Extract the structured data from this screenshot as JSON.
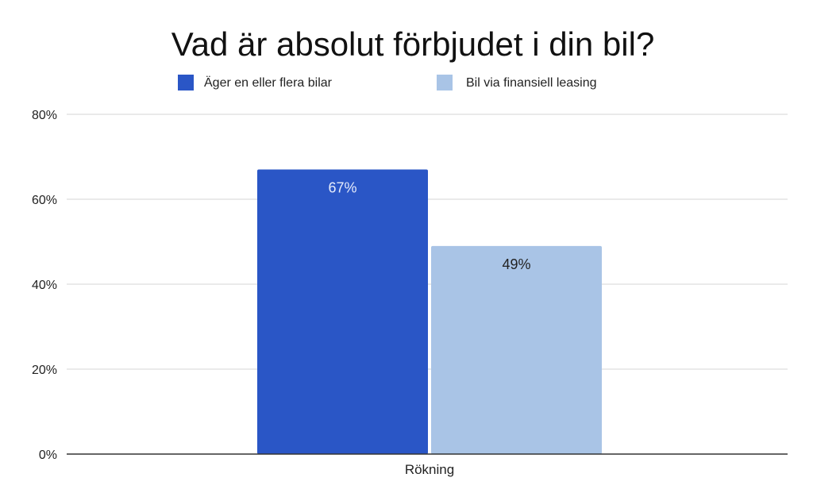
{
  "chart_data": {
    "type": "bar",
    "title": "Vad är absolut förbjudet i din bil?",
    "categories": [
      "Rökning"
    ],
    "series": [
      {
        "name": "Äger en eller flera bilar",
        "values": [
          67
        ],
        "labels": [
          "67%"
        ],
        "color": "#2a56c6",
        "label_color": "#e6ecfb"
      },
      {
        "name": "Bil via finansiell leasing",
        "values": [
          49
        ],
        "labels": [
          "49%"
        ],
        "color": "#a9c4e6",
        "label_color": "#222222"
      }
    ],
    "ylim": [
      0,
      80
    ],
    "yticks": [
      0,
      20,
      40,
      60,
      80
    ],
    "ytick_labels": [
      "0%",
      "20%",
      "40%",
      "60%",
      "80%"
    ],
    "xlabel": "",
    "ylabel": "",
    "grid": true,
    "legend_position": "top"
  }
}
